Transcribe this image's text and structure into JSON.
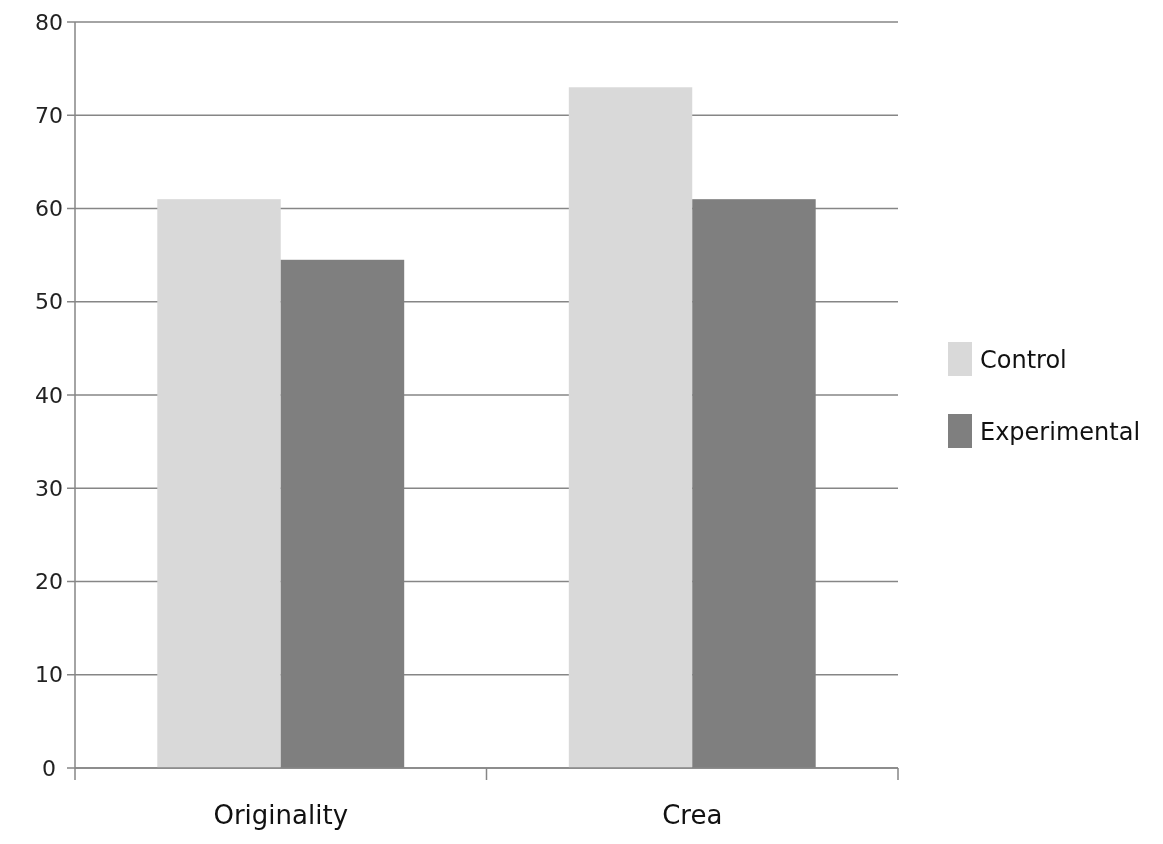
{
  "chart_data": {
    "type": "bar",
    "categories": [
      "Originality",
      "Crea"
    ],
    "series": [
      {
        "name": "Control",
        "color": "#d9d9d9",
        "values": [
          61,
          73
        ]
      },
      {
        "name": "Experimental",
        "color": "#7f7f7f",
        "values": [
          54.5,
          61
        ]
      }
    ],
    "ylim": [
      0,
      80
    ],
    "yticks": [
      0,
      10,
      20,
      30,
      40,
      50,
      60,
      70,
      80
    ],
    "grid": "y",
    "legend": "right"
  }
}
